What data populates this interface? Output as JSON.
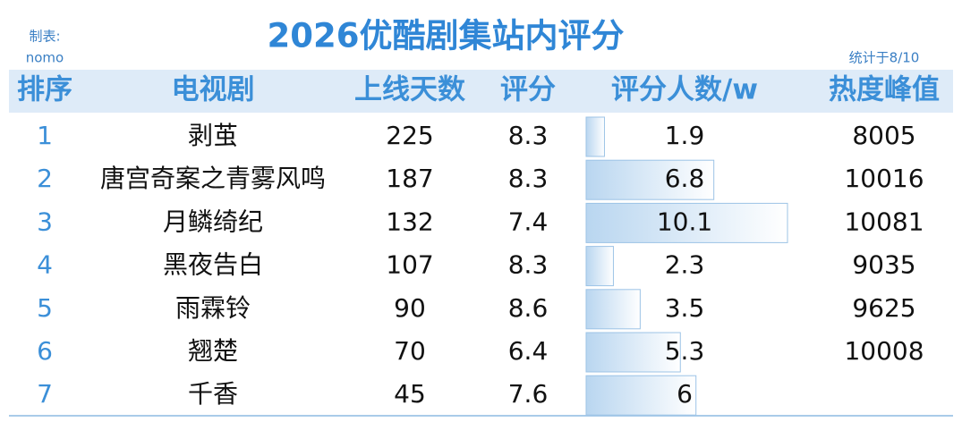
{
  "header": {
    "credit_label": "制表:",
    "credit_name": "nomo",
    "title": "2026优酷剧集站内评分",
    "note": "统计于8/10"
  },
  "table": {
    "columns": [
      "排序",
      "电视剧",
      "上线天数",
      "评分",
      "评分人数/w",
      "热度峰值"
    ],
    "rows": [
      [
        1,
        "剥茧",
        225,
        8.3,
        1.9,
        8005
      ],
      [
        2,
        "唐宫奇案之青雾风鸣",
        187,
        8.3,
        6.8,
        10016
      ],
      [
        3,
        "月鳞绮纪",
        132,
        7.4,
        10.1,
        10081
      ],
      [
        4,
        "黑夜告白",
        107,
        8.3,
        2.3,
        9035
      ],
      [
        5,
        "雨霖铃",
        90,
        8.6,
        3.5,
        9625
      ],
      [
        6,
        "翘楚",
        70,
        6.4,
        5.3,
        10008
      ],
      [
        7,
        "千香",
        45,
        7.6,
        6,
        null
      ]
    ]
  }
}
